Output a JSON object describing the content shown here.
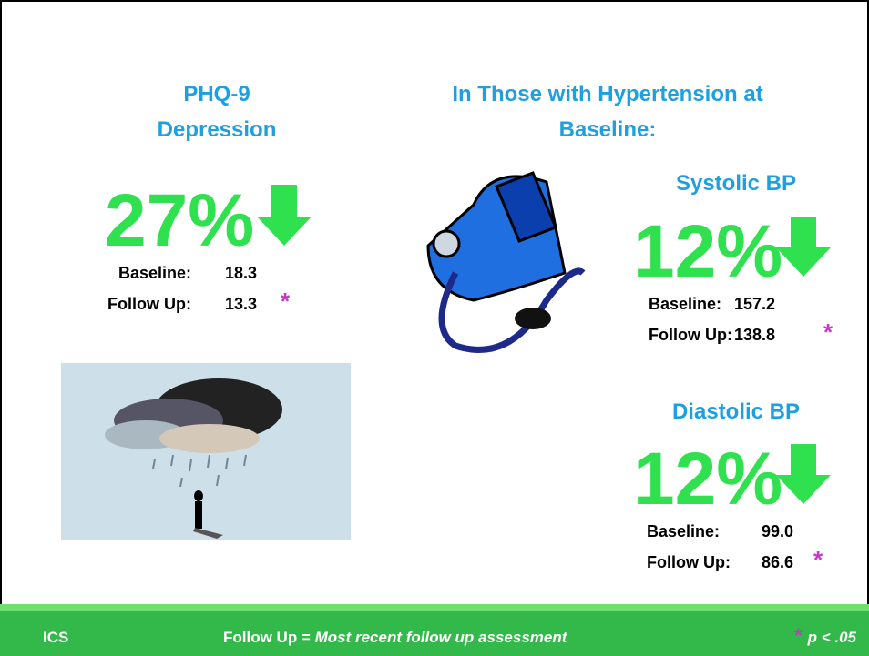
{
  "phq9": {
    "title_lines": [
      "PHQ-9",
      "Depression"
    ],
    "change": "27%",
    "baseline_label": "Baseline:",
    "baseline": "18.3",
    "follow_up_label": "Follow Up:",
    "follow_up": "13.3",
    "significance": "*"
  },
  "hypertension": {
    "title_lines": [
      "In Those with Hypertension at",
      "Baseline:"
    ],
    "systolic": {
      "title": "Systolic BP",
      "change": "12%",
      "baseline_label": "Baseline:",
      "baseline": "157.2",
      "follow_up_label": "Follow Up:",
      "follow_up": "138.8",
      "significance": "*"
    },
    "diastolic": {
      "title": "Diastolic BP",
      "change": "12%",
      "baseline_label": "Baseline:",
      "baseline": "99.0",
      "follow_up_label": "Follow Up:",
      "follow_up": "86.6",
      "significance": "*"
    }
  },
  "footer": {
    "left": "ICS",
    "definition_term": "Follow Up = ",
    "definition": "Most recent follow up assessment",
    "significance_marker": "*",
    "significance_text": "p < .05"
  }
}
